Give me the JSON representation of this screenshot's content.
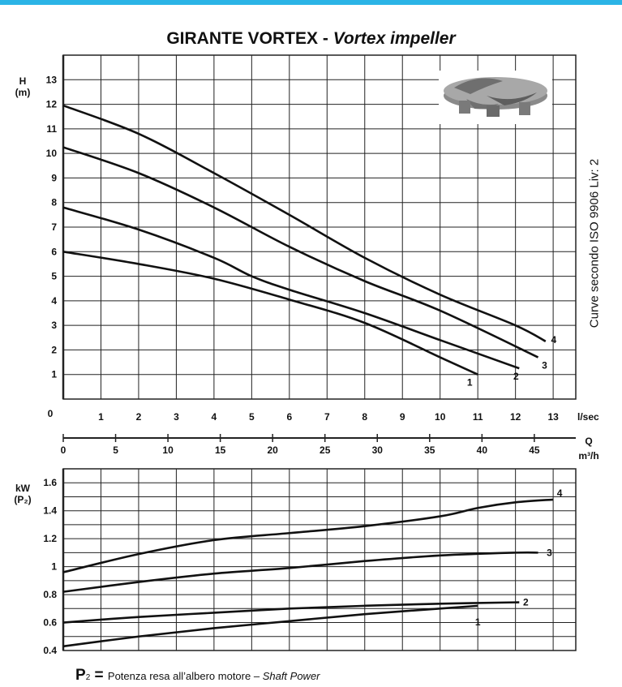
{
  "title": {
    "main": "GIRANTE VORTEX - ",
    "italic": "Vortex impeller"
  },
  "side_note": "Curve secondo ISO 9906 Liv: 2",
  "footnote": {
    "p": "P",
    "sub": "2",
    "eq": " = ",
    "text": "Potenza resa all’albero motore – ",
    "italic": "Shaft Power"
  },
  "image_label": "vortex-impeller-image",
  "colors": {
    "accent_bar": "#2bb4e6",
    "curve": "#111111",
    "grid": "#222222"
  },
  "chart_data": [
    {
      "type": "line",
      "ylabel_lines": [
        "H",
        "(m)"
      ],
      "xlabel": "l/sec",
      "origin_label": "0",
      "xlim": [
        0,
        13.6
      ],
      "ylim": [
        0,
        14
      ],
      "x_ticks": [
        1,
        2,
        3,
        4,
        5,
        6,
        7,
        8,
        9,
        10,
        11,
        12,
        13
      ],
      "y_ticks": [
        1,
        2,
        3,
        4,
        5,
        6,
        7,
        8,
        9,
        10,
        11,
        12,
        13
      ],
      "grid": true,
      "series": [
        {
          "name": "1",
          "points": [
            [
              0,
              6.0
            ],
            [
              2,
              5.5
            ],
            [
              4,
              4.9
            ],
            [
              6,
              4.05
            ],
            [
              8,
              3.1
            ],
            [
              10,
              1.7
            ],
            [
              11,
              1.0
            ]
          ]
        },
        {
          "name": "2",
          "points": [
            [
              0,
              7.8
            ],
            [
              2,
              6.9
            ],
            [
              4,
              5.75
            ],
            [
              5,
              5.0
            ],
            [
              6,
              4.45
            ],
            [
              8,
              3.5
            ],
            [
              10,
              2.4
            ],
            [
              12.1,
              1.25
            ]
          ]
        },
        {
          "name": "3",
          "points": [
            [
              0,
              10.25
            ],
            [
              2,
              9.2
            ],
            [
              4,
              7.8
            ],
            [
              6,
              6.2
            ],
            [
              8,
              4.8
            ],
            [
              10,
              3.6
            ],
            [
              12.6,
              1.7
            ]
          ]
        },
        {
          "name": "4",
          "points": [
            [
              0,
              11.95
            ],
            [
              2,
              10.8
            ],
            [
              4,
              9.2
            ],
            [
              6,
              7.5
            ],
            [
              8,
              5.75
            ],
            [
              10,
              4.25
            ],
            [
              12,
              3.0
            ],
            [
              12.8,
              2.35
            ]
          ]
        }
      ]
    },
    {
      "type": "axis",
      "label_lines": [
        "Q",
        "m³/h"
      ],
      "ticks": [
        0,
        5,
        10,
        15,
        20,
        25,
        30,
        35,
        40,
        45
      ],
      "unit": "m³/h"
    },
    {
      "type": "line",
      "ylabel_lines": [
        "kW",
        "(P₂)"
      ],
      "ylim": [
        0.4,
        1.7
      ],
      "y_ticks": [
        "0.4",
        "0.6",
        "0.8",
        "1",
        "1.2",
        "1.4",
        "1.6"
      ],
      "xlim": [
        0,
        13.6
      ],
      "grid": true,
      "series": [
        {
          "name": "1",
          "points": [
            [
              0,
              0.43
            ],
            [
              2,
              0.5
            ],
            [
              4,
              0.56
            ],
            [
              6,
              0.61
            ],
            [
              8,
              0.66
            ],
            [
              10,
              0.7
            ],
            [
              11,
              0.72
            ]
          ]
        },
        {
          "name": "2",
          "points": [
            [
              0,
              0.6
            ],
            [
              2,
              0.64
            ],
            [
              4,
              0.67
            ],
            [
              6,
              0.7
            ],
            [
              8,
              0.72
            ],
            [
              10,
              0.735
            ],
            [
              12.1,
              0.745
            ]
          ]
        },
        {
          "name": "3",
          "points": [
            [
              0,
              0.82
            ],
            [
              2,
              0.89
            ],
            [
              4,
              0.95
            ],
            [
              6,
              0.99
            ],
            [
              8,
              1.04
            ],
            [
              10,
              1.08
            ],
            [
              12,
              1.1
            ],
            [
              12.6,
              1.1
            ]
          ]
        },
        {
          "name": "4",
          "points": [
            [
              0,
              0.96
            ],
            [
              2,
              1.09
            ],
            [
              4,
              1.19
            ],
            [
              6,
              1.24
            ],
            [
              8,
              1.29
            ],
            [
              10,
              1.36
            ],
            [
              11,
              1.42
            ],
            [
              12,
              1.46
            ],
            [
              13,
              1.48
            ]
          ]
        }
      ]
    }
  ]
}
